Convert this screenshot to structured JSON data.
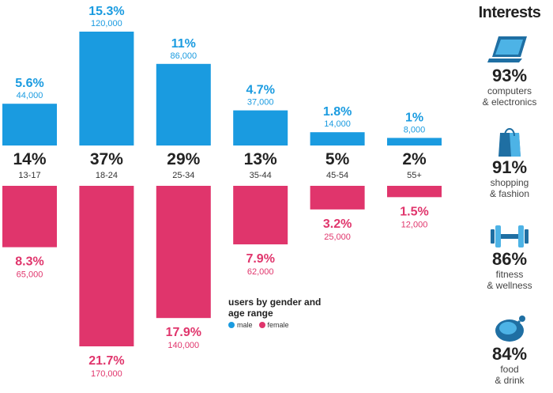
{
  "chart_data": {
    "type": "bar",
    "title": "",
    "legend_title": "users by gender and age range",
    "categories": [
      "13-17",
      "18-24",
      "25-34",
      "35-44",
      "45-54",
      "55+"
    ],
    "totals": [
      "14%",
      "37%",
      "29%",
      "13%",
      "5%",
      "2%"
    ],
    "series": [
      {
        "name": "male",
        "color": "#1a9be0",
        "percent_labels": [
          "5.6%",
          "15.3%",
          "11%",
          "4.7%",
          "1.8%",
          "1%"
        ],
        "count_labels": [
          "44,000",
          "120,000",
          "86,000",
          "37,000",
          "14,000",
          "8,000"
        ],
        "values": [
          44000,
          120000,
          86000,
          37000,
          14000,
          8000
        ]
      },
      {
        "name": "female",
        "color": "#e0356c",
        "percent_labels": [
          "8.3%",
          "21.7%",
          "17.9%",
          "7.9%",
          "3.2%",
          "1.5%"
        ],
        "count_labels": [
          "65,000",
          "170,000",
          "140,000",
          "62,000",
          "25,000",
          "12,000"
        ],
        "values": [
          65000,
          170000,
          140000,
          62000,
          25000,
          12000
        ]
      }
    ]
  },
  "legend": {
    "title": "users by gender and age range",
    "male_label": "male",
    "female_label": "female"
  },
  "interests": {
    "title": "Interests",
    "items": [
      {
        "icon": "laptop-icon",
        "percent": "93%",
        "line1": "computers",
        "line2": "& electronics"
      },
      {
        "icon": "shopping-bag-icon",
        "percent": "91%",
        "line1": "shopping",
        "line2": "& fashion"
      },
      {
        "icon": "dumbbell-icon",
        "percent": "86%",
        "line1": "fitness",
        "line2": "& wellness"
      },
      {
        "icon": "food-icon",
        "percent": "84%",
        "line1": "food",
        "line2": "& drink"
      }
    ]
  }
}
